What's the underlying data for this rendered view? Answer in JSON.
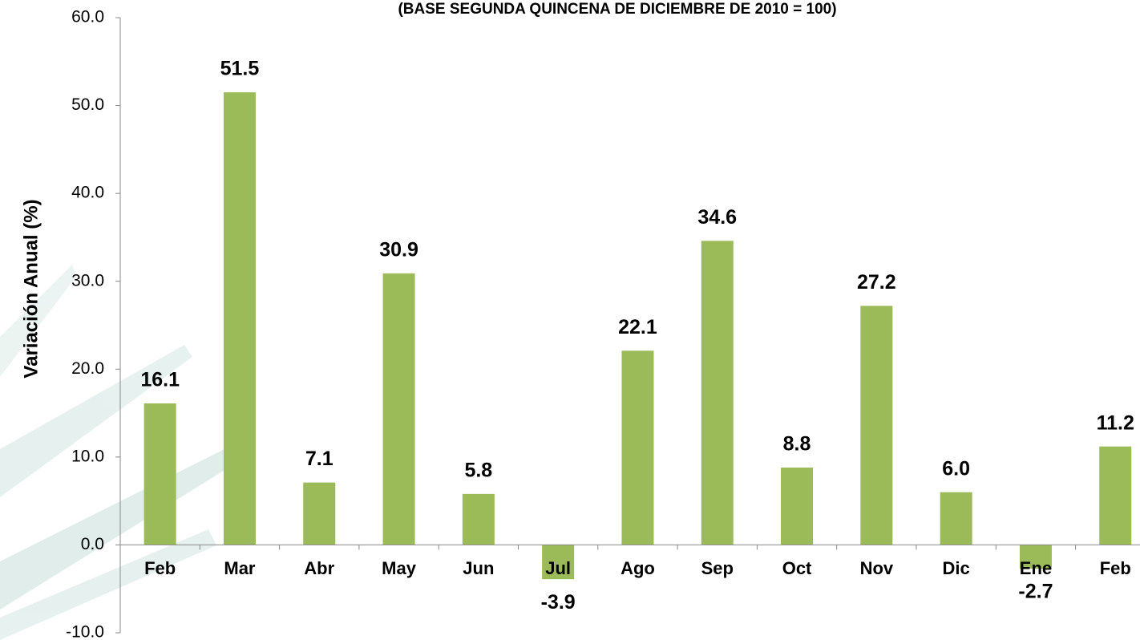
{
  "chart_data": {
    "type": "bar",
    "title": "(BASE SEGUNDA QUINCENA DE DICIEMBRE DE 2010 = 100)",
    "y_label": "Variación Anual  (%)",
    "categories": [
      "Feb",
      "Mar",
      "Abr",
      "May",
      "Jun",
      "Jul",
      "Ago",
      "Sep",
      "Oct",
      "Nov",
      "Dic",
      "Ene",
      "Feb"
    ],
    "values": [
      16.1,
      51.5,
      7.1,
      30.9,
      5.8,
      -3.9,
      22.1,
      34.6,
      8.8,
      27.2,
      6.0,
      -2.7,
      11.2
    ],
    "value_labels": [
      "16.1",
      "51.5",
      "7.1",
      "30.9",
      "5.8",
      "-3.9",
      "22.1",
      "34.6",
      "8.8",
      "27.2",
      "6.0",
      "-2.7",
      "11.2"
    ],
    "color": "#9bbb59",
    "ylim": [
      -10,
      60
    ],
    "yticks": [
      {
        "value": -10,
        "label": "-10.0"
      },
      {
        "value": 0,
        "label": "0.0"
      },
      {
        "value": 10,
        "label": "10.0"
      },
      {
        "value": 20,
        "label": "20.0"
      },
      {
        "value": 30,
        "label": "30.0"
      },
      {
        "value": 40,
        "label": "40.0"
      },
      {
        "value": 50,
        "label": "50.0"
      },
      {
        "value": 60,
        "label": "60.0"
      }
    ],
    "grid": false
  }
}
